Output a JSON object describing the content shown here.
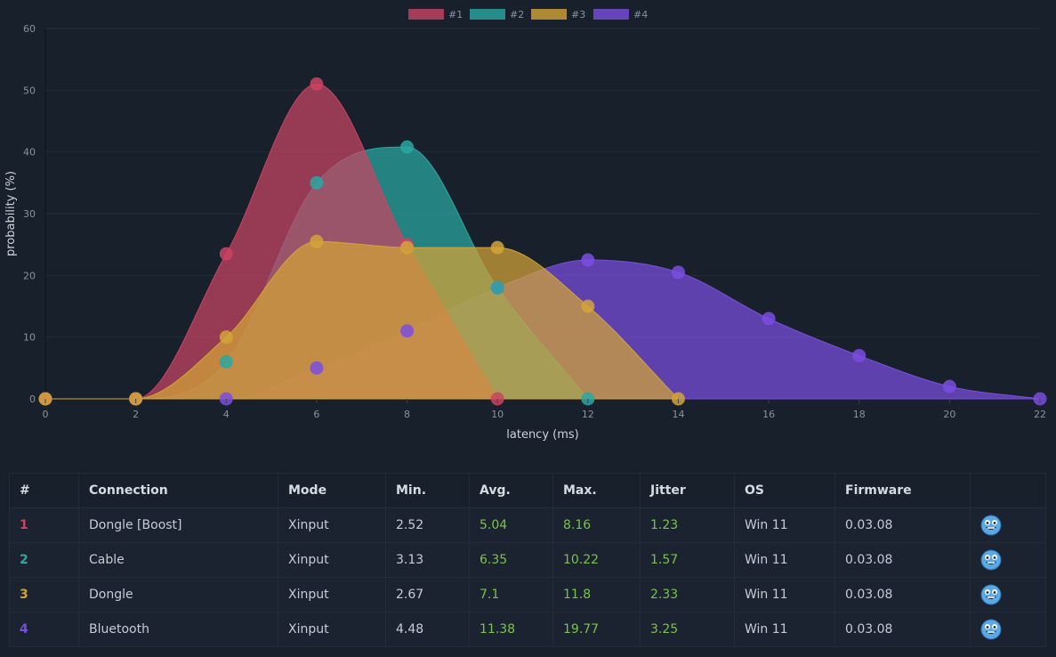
{
  "colors": {
    "series": [
      "#c94463",
      "#2aa7a2",
      "#d4a437",
      "#7b4ee0"
    ],
    "grid": "#232c38",
    "background": "#18202b",
    "good_value": "#7cc24a"
  },
  "chart_data": {
    "type": "area",
    "title": "",
    "xlabel": "latency (ms)",
    "ylabel": "probability (%)",
    "xlim": [
      0,
      22
    ],
    "ylim": [
      0,
      60
    ],
    "x_ticks": [
      "0",
      "2",
      "4",
      "6",
      "8",
      "10",
      "12",
      "14",
      "16",
      "18",
      "20",
      "22"
    ],
    "y_ticks": [
      "0",
      "10",
      "20",
      "30",
      "40",
      "50",
      "60"
    ],
    "legend_position": "top",
    "series": [
      {
        "name": "#1",
        "x": [
          0,
          2,
          4,
          6,
          8,
          10
        ],
        "values": [
          0,
          0,
          23.5,
          51,
          25,
          0
        ]
      },
      {
        "name": "#2",
        "x": [
          0,
          2,
          4,
          6,
          8,
          10,
          12
        ],
        "values": [
          0,
          0,
          6,
          35,
          40.8,
          18,
          0
        ]
      },
      {
        "name": "#3",
        "x": [
          0,
          2,
          4,
          6,
          8,
          10,
          12,
          14
        ],
        "values": [
          0,
          0,
          10,
          25.5,
          24.5,
          24.5,
          15,
          0
        ]
      },
      {
        "name": "#4",
        "x": [
          0,
          2,
          4,
          6,
          8,
          10,
          12,
          14,
          16,
          18,
          20,
          22
        ],
        "values": [
          0,
          0,
          0,
          5,
          11,
          18,
          22.5,
          20.5,
          13,
          7,
          2,
          0
        ]
      }
    ]
  },
  "table": {
    "headers": [
      "#",
      "Connection",
      "Mode",
      "Min.",
      "Avg.",
      "Max.",
      "Jitter",
      "OS",
      "Firmware",
      ""
    ],
    "rows": [
      {
        "num": "1",
        "connection": "Dongle [Boost]",
        "mode": "Xinput",
        "min": "2.52",
        "avg": "5.04",
        "max": "8.16",
        "jitter": "1.23",
        "os": "Win 11",
        "firmware": "0.03.08",
        "icon": "smiley-face-icon"
      },
      {
        "num": "2",
        "connection": "Cable",
        "mode": "Xinput",
        "min": "3.13",
        "avg": "6.35",
        "max": "10.22",
        "jitter": "1.57",
        "os": "Win 11",
        "firmware": "0.03.08",
        "icon": "smiley-face-icon"
      },
      {
        "num": "3",
        "connection": "Dongle",
        "mode": "Xinput",
        "min": "2.67",
        "avg": "7.1",
        "max": "11.8",
        "jitter": "2.33",
        "os": "Win 11",
        "firmware": "0.03.08",
        "icon": "smiley-face-icon"
      },
      {
        "num": "4",
        "connection": "Bluetooth",
        "mode": "Xinput",
        "min": "4.48",
        "avg": "11.38",
        "max": "19.77",
        "jitter": "3.25",
        "os": "Win 11",
        "firmware": "0.03.08",
        "icon": "smiley-face-icon"
      }
    ]
  }
}
